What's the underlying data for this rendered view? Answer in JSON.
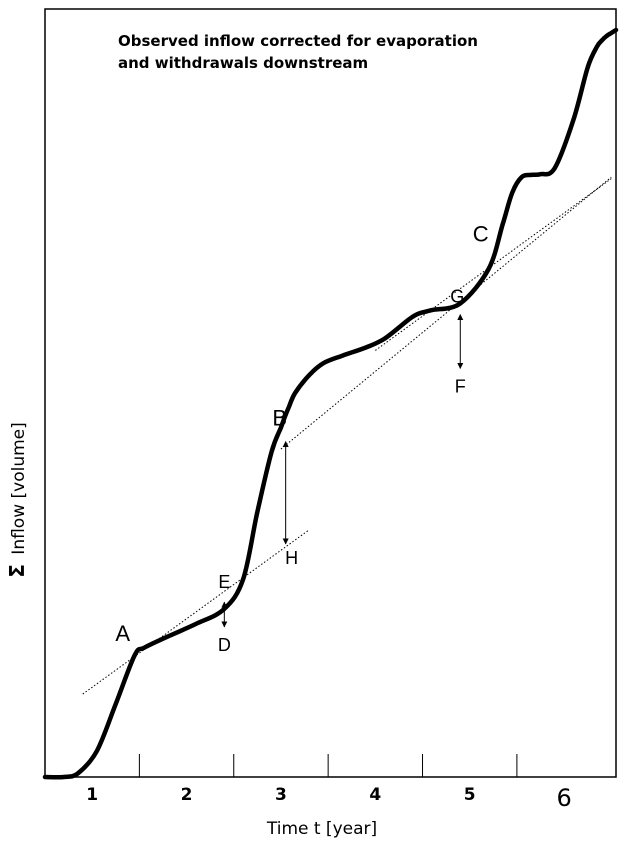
{
  "chart_data": {
    "type": "line",
    "title": "",
    "annotation_lines": [
      "Observed inflow corrected for evaporation",
      "and withdrawals downstream"
    ],
    "xlabel": "Time t [year]",
    "ylabel": "Inflow [volume]",
    "ylabel_symbol": "Σ",
    "xlim": [
      0,
      6.05
    ],
    "ylim": [
      0,
      100
    ],
    "x_ticks": [
      1,
      2,
      3,
      4,
      5,
      6
    ],
    "x_tick_labels": [
      "1",
      "2",
      "3",
      "4",
      "5",
      "6"
    ],
    "grid": false,
    "series": [
      {
        "x": [
          0,
          0.2,
          0.35,
          0.55,
          0.75,
          0.95,
          1.05,
          1.3,
          1.6,
          1.9,
          2.1,
          2.25,
          2.4,
          2.5,
          2.55,
          2.58,
          2.65,
          2.8,
          2.95,
          3.15,
          3.4,
          3.6,
          3.85,
          3.95,
          4.1,
          4.4,
          4.7,
          4.85,
          4.95,
          5.05,
          5.15,
          5.25,
          5.4,
          5.6,
          5.75,
          5.85,
          5.9,
          5.95,
          6.0,
          6.05
        ],
        "y": [
          0,
          0,
          0.5,
          3.5,
          9.8,
          16.3,
          17.3,
          18.8,
          20.5,
          22.5,
          26.5,
          35.5,
          43.5,
          46.8,
          48.5,
          49.4,
          51.4,
          53.8,
          55.4,
          56.4,
          57.5,
          58.7,
          61.2,
          62.0,
          62.5,
          63.4,
          68.0,
          74.0,
          78.2,
          80.3,
          80.6,
          80.7,
          81.5,
          88.0,
          95.0,
          97.8,
          98.6,
          99.2,
          99.6,
          100
        ]
      }
    ],
    "tangent_lines": [
      {
        "from": [
          0.4,
          11.1
        ],
        "to": [
          2.8,
          33.1
        ]
      },
      {
        "from": [
          2.5,
          43.9
        ],
        "to": [
          6.0,
          80.3
        ]
      },
      {
        "from": [
          3.5,
          57.1
        ],
        "to": [
          6.0,
          80.1
        ]
      }
    ],
    "points": [
      {
        "name": "A",
        "x": 0.95,
        "y": 16.3
      },
      {
        "name": "B",
        "x": 2.55,
        "y": 44.9
      },
      {
        "name": "C",
        "x": 4.85,
        "y": 70.1
      },
      {
        "name": "D",
        "x": 1.9,
        "y": 20.1
      },
      {
        "name": "E",
        "x": 1.9,
        "y": 23.4
      },
      {
        "name": "F",
        "x": 4.4,
        "y": 54.7
      },
      {
        "name": "G",
        "x": 4.4,
        "y": 61.9
      },
      {
        "name": "H",
        "x": 2.55,
        "y": 31.2
      }
    ],
    "arrows": [
      {
        "from": "D",
        "to": "E"
      },
      {
        "from": "B",
        "to": "H"
      },
      {
        "from": "F",
        "to": "G"
      }
    ]
  }
}
